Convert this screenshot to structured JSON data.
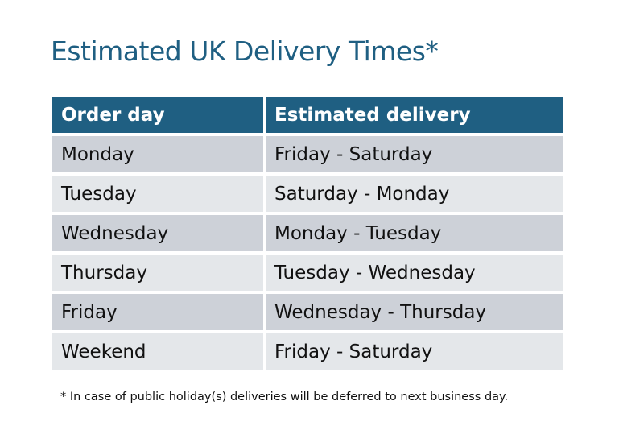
{
  "title": "Estimated UK Delivery Times*",
  "colors": {
    "header": "#1F5F82",
    "row_dark": "#CDD1D8",
    "row_light": "#E4E7EA"
  },
  "table": {
    "headers": [
      "Order day",
      "Estimated delivery"
    ],
    "rows": [
      [
        "Monday",
        "Friday - Saturday"
      ],
      [
        "Tuesday",
        "Saturday - Monday"
      ],
      [
        "Wednesday",
        "Monday - Tuesday"
      ],
      [
        "Thursday",
        "Tuesday - Wednesday"
      ],
      [
        "Friday",
        "Wednesday - Thursday"
      ],
      [
        "Weekend",
        "Friday - Saturday"
      ]
    ]
  },
  "footnote": "* In case of public holiday(s) deliveries will be deferred to next business day."
}
